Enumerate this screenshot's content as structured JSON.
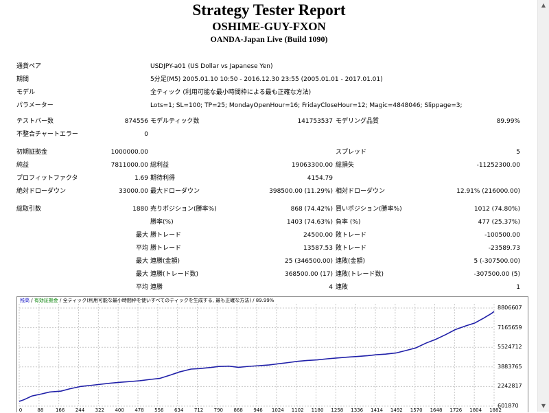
{
  "header": {
    "title": "Strategy Tester Report",
    "ea_name": "OSHIME-GUY-FXON",
    "server": "OANDA-Japan Live (Build 1090)"
  },
  "info": {
    "symbol_label": "通貨ペア",
    "symbol_value": "USDJPY-a01 (US Dollar vs Japanese Yen)",
    "period_label": "期間",
    "period_value": "5分足(M5) 2005.01.10 10:50 - 2016.12.30 23:55 (2005.01.01 - 2017.01.01)",
    "model_label": "モデル",
    "model_value": "全ティック (利用可能な最小時間枠による最も正確な方法)",
    "params_label": "パラメーター",
    "params_value": "Lots=1; SL=100; TP=25; MondayOpenHour=16; FridayCloseHour=12; Magic=4848046; Slippage=3;"
  },
  "stats": {
    "bars_label": "テストバー数",
    "bars_value": "874556",
    "ticks_label": "モデルティック数",
    "ticks_value": "141753537",
    "quality_label": "モデリング品質",
    "quality_value": "89.99%",
    "mismatch_label": "不整合チャートエラー",
    "mismatch_value": "0",
    "deposit_label": "初期証拠金",
    "deposit_value": "1000000.00",
    "spread_label": "スプレッド",
    "spread_value": "5",
    "net_label": "純益",
    "net_value": "7811000.00",
    "gross_profit_label": "総利益",
    "gross_profit_value": "19063300.00",
    "gross_loss_label": "総損失",
    "gross_loss_value": "-11252300.00",
    "pf_label": "プロフィットファクタ",
    "pf_value": "1.69",
    "payoff_label": "期待利得",
    "payoff_value": "4154.79",
    "abs_dd_label": "絶対ドローダウン",
    "abs_dd_value": "33000.00",
    "max_dd_label": "最大ドローダウン",
    "max_dd_value": "398500.00 (11.29%)",
    "rel_dd_label": "相対ドローダウン",
    "rel_dd_value": "12.91% (216000.00)",
    "total_label": "総取引数",
    "total_value": "1880",
    "short_label": "売りポジション(勝率%)",
    "short_value": "868 (74.42%)",
    "long_label": "買いポジション(勝率%)",
    "long_value": "1012 (74.80%)",
    "win_label": "勝率(%)",
    "win_value": "1403 (74.63%)",
    "loss_label": "負率 (%)",
    "loss_value": "477 (25.37%)",
    "max_prefix": "最大",
    "avg_prefix": "平均",
    "lwin_label": "勝トレード",
    "lwin_value": "24500.00",
    "lloss_label": "敗トレード",
    "lloss_value": "-100500.00",
    "awin_label": "勝トレード",
    "awin_value": "13587.53",
    "aloss_label": "敗トレード",
    "aloss_value": "-23589.73",
    "cw_label": "連勝(金額)",
    "cw_value": "25 (346500.00)",
    "cl_label": "連敗(金額)",
    "cl_value": "5 (-307500.00)",
    "cwp_label": "連勝(トレード数)",
    "cwp_value": "368500.00 (17)",
    "clp_label": "連敗(トレード数)",
    "clp_value": "-307500.00 (5)",
    "acw_label": "連勝",
    "acw_value": "4",
    "acl_label": "連敗",
    "acl_value": "1"
  },
  "chart_legend": {
    "balance": "残高",
    "sep1": " / ",
    "equity": "有効証拠金",
    "rest": " / 全ティック(利用可能な最小時間枠を使いすべてのティックを生成する, 最も正確な方法) / 89.99%"
  },
  "chart_data": {
    "type": "line",
    "title": "",
    "xlabel": "",
    "ylabel": "",
    "ylim": [
      601870,
      8806607
    ],
    "xlim": [
      0,
      1880
    ],
    "y_ticks": [
      "8806607",
      "7165659",
      "5524712",
      "3883765",
      "2242817",
      "601870"
    ],
    "x_ticks": [
      "0",
      "88",
      "166",
      "244",
      "322",
      "400",
      "478",
      "556",
      "634",
      "712",
      "790",
      "868",
      "946",
      "1024",
      "1102",
      "1180",
      "1258",
      "1336",
      "1414",
      "1492",
      "1570",
      "1648",
      "1726",
      "1804",
      "1882"
    ],
    "grid": true,
    "series": [
      {
        "color": "#1f1fa8",
        "x": [
          0,
          20,
          50,
          88,
          120,
          166,
          200,
          244,
          280,
          322,
          360,
          400,
          440,
          478,
          520,
          556,
          600,
          634,
          680,
          712,
          760,
          790,
          830,
          868,
          910,
          946,
          990,
          1024,
          1060,
          1102,
          1140,
          1180,
          1220,
          1258,
          1300,
          1336,
          1380,
          1414,
          1450,
          1492,
          1530,
          1570,
          1610,
          1648,
          1690,
          1726,
          1770,
          1804,
          1840,
          1870,
          1880
        ],
        "y": [
          1000000,
          1150000,
          1450000,
          1620000,
          1780000,
          1860000,
          2050000,
          2250000,
          2330000,
          2430000,
          2520000,
          2600000,
          2660000,
          2730000,
          2840000,
          2920000,
          3210000,
          3460000,
          3700000,
          3740000,
          3840000,
          3920000,
          3950000,
          3850000,
          3930000,
          3980000,
          4050000,
          4140000,
          4230000,
          4350000,
          4420000,
          4470000,
          4560000,
          4630000,
          4700000,
          4750000,
          4820000,
          4900000,
          4950000,
          5050000,
          5250000,
          5470000,
          5870000,
          6180000,
          6600000,
          7000000,
          7330000,
          7560000,
          7980000,
          8360000,
          8520000
        ]
      }
    ]
  }
}
